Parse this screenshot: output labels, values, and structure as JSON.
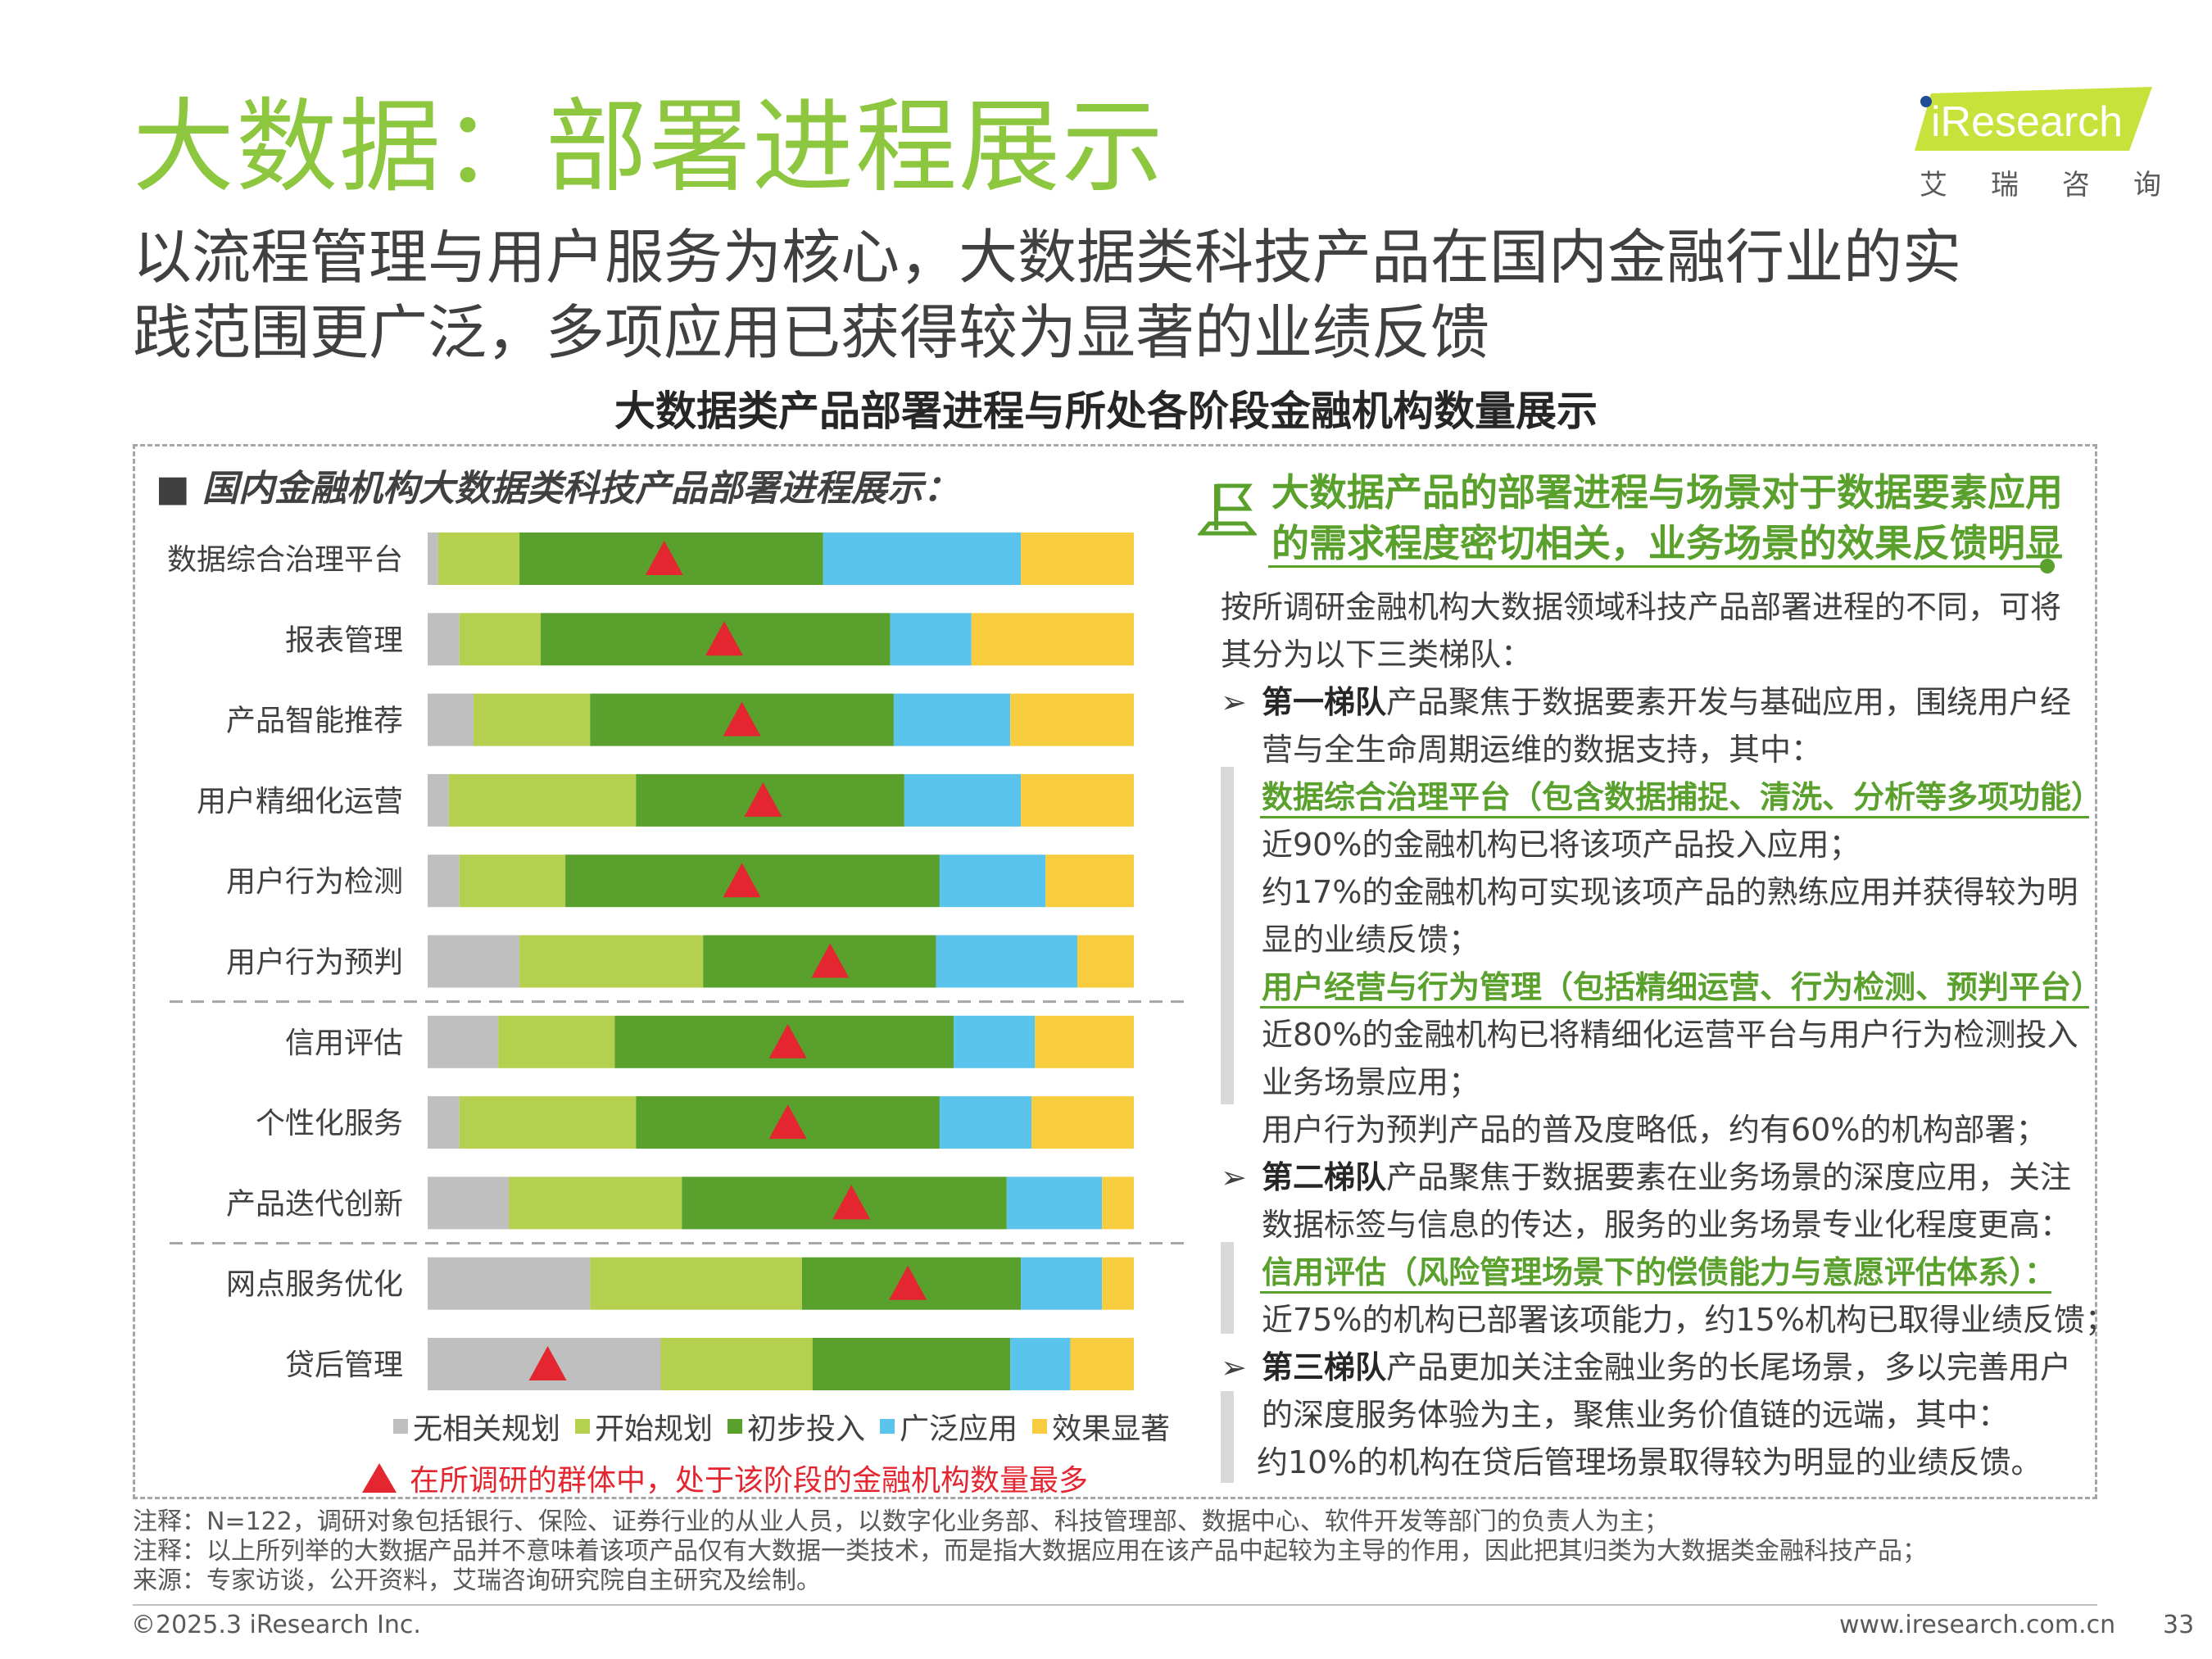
{
  "header": {
    "title": "大数据：部署进程展示",
    "subtitle_lines": [
      "以流程管理与用户服务为核心，大数据类科技产品在国内金融行业的实",
      "践范围更广泛，多项应用已获得较为显著的业绩反馈"
    ],
    "logo_text": "iResearch",
    "logo_cn": [
      "艾",
      "瑞",
      "咨",
      "询"
    ]
  },
  "section_title": "大数据类产品部署进程与所处各阶段金融机构数量展示",
  "chart_heading": "■  国内金融机构大数据类科技产品部署进程展示：",
  "chart_data": {
    "type": "bar",
    "orientation": "horizontal",
    "stacked": true,
    "unit": "percent",
    "xlim": [
      0,
      100
    ],
    "categories": [
      "数据综合治理平台",
      "报表管理",
      "产品智能推荐",
      "用户精细化运营",
      "用户行为检测",
      "用户行为预判",
      "信用评估",
      "个性化服务",
      "产品迭代创新",
      "网点服务优化",
      "贷后管理"
    ],
    "series": [
      {
        "name": "无相关规划",
        "color": "#bfbfbf",
        "values": [
          1.5,
          4.5,
          6.5,
          3,
          4.5,
          13,
          10,
          4.5,
          11.5,
          23,
          33
        ]
      },
      {
        "name": "开始规划",
        "color": "#b5cf4f",
        "values": [
          11.5,
          11.5,
          16.5,
          26.5,
          15,
          26,
          16.5,
          25,
          24.5,
          30,
          21.5
        ]
      },
      {
        "name": "初步投入",
        "color": "#5aa02c",
        "values": [
          43,
          49.5,
          43,
          38,
          53,
          33,
          48,
          43,
          46,
          31,
          28
        ]
      },
      {
        "name": "广泛应用",
        "color": "#5bc4ed",
        "values": [
          28,
          11.5,
          16.5,
          16.5,
          15,
          20,
          11.5,
          13,
          13.5,
          11.5,
          8.5
        ]
      },
      {
        "name": "效果显著",
        "color": "#f7cd3f",
        "values": [
          16,
          23,
          17.5,
          16,
          12.5,
          8,
          14,
          14.5,
          4.5,
          4.5,
          9
        ]
      }
    ],
    "marker_position": [
      33.5,
      42,
      44.5,
      47.5,
      44.5,
      57,
      51,
      51,
      60,
      68,
      17
    ],
    "group_dividers_after": [
      5,
      8
    ],
    "legend": {
      "position": "bottom"
    },
    "marker_note": "在所调研的群体中，处于该阶段的金融机构数量最多"
  },
  "callout": {
    "title_lines": [
      "大数据产品的部署进程与场景对于数据要素应用",
      "的需求程度密切相关，业务场景的效果反馈明显"
    ],
    "intro_lines": [
      "按所调研金融机构大数据领域科技产品部署进程的不同，可将",
      "其分为以下三类梯队："
    ],
    "tier1": {
      "bold": "第一梯队",
      "text_lines": [
        "产品聚焦于数据要素开发与基础应用，围绕用户经",
        "营与全生命周期运维的数据支持，其中："
      ],
      "item1_heading": "数据综合治理平台（包含数据捕捉、清洗、分析等多项功能）",
      "item1_lines": [
        "近90%的金融机构已将该项产品投入应用；",
        "约17%的金融机构可实现该项产品的熟练应用并获得较为明",
        "显的业绩反馈；"
      ],
      "item2_heading": "用户经营与行为管理（包括精细运营、行为检测、预判平台）",
      "item2_lines": [
        "近80%的金融机构已将精细化运营平台与用户行为检测投入",
        "业务场景应用；",
        "用户行为预判产品的普及度略低，约有60%的机构部署；"
      ]
    },
    "tier2": {
      "bold": "第二梯队",
      "text_lines": [
        "产品聚焦于数据要素在业务场景的深度应用，关注",
        "数据标签与信息的传达，服务的业务场景专业化程度更高："
      ],
      "item_heading": "信用评估（风险管理场景下的偿债能力与意愿评估体系）：",
      "item_lines": [
        "近75%的机构已部署该项能力，约15%机构已取得业绩反馈；"
      ]
    },
    "tier3": {
      "bold": "第三梯队",
      "text_lines": [
        "产品更加关注金融业务的长尾场景，多以完善用户",
        "的深度服务体验为主，聚焦业务价值链的远端，其中：",
        "约10%的机构在贷后管理场景取得较为明显的业绩反馈。"
      ]
    },
    "arrow_glyph": "➢"
  },
  "notes": [
    "注释：N=122，调研对象包括银行、保险、证券行业的从业人员，以数字化业务部、科技管理部、数据中心、软件开发等部门的负责人为主；",
    "注释：以上所列举的大数据产品并不意味着该项产品仅有大数据一类技术，而是指大数据应用在该产品中起较为主导的作用，因此把其归类为大数据类金融科技产品；",
    "来源：专家访谈，公开资料，艾瑞咨询研究院自主研究及绘制。"
  ],
  "footer": {
    "copyright": "©2025.3 iResearch Inc.",
    "website": "www.iresearch.com.cn",
    "page": "33"
  },
  "colors": {
    "title_green": "#8dc63f",
    "accent_green": "#5aa02c",
    "marker_red": "#e3262f"
  }
}
